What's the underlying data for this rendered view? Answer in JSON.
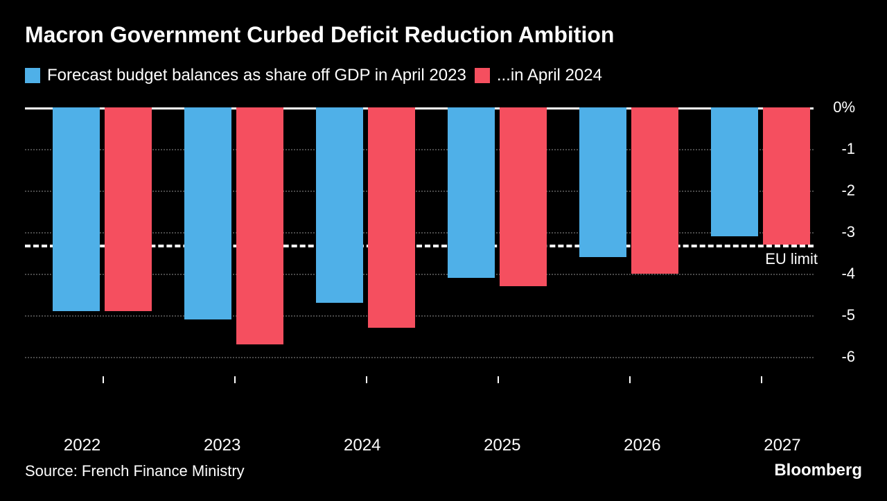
{
  "title": "Macron Government Curbed Deficit Reduction Ambition",
  "legend": {
    "series_a": {
      "label": "Forecast budget balances as share off GDP in April 2023",
      "color": "#4fb0e8"
    },
    "series_b": {
      "label": "...in April 2024",
      "color": "#f54f5f"
    }
  },
  "chart": {
    "type": "bar",
    "background_color": "#000000",
    "grid_color": "#4a4a4a",
    "axis_color": "#ffffff",
    "text_color": "#ffffff",
    "y": {
      "min": -6.5,
      "max": 0,
      "ticks": [
        0,
        -1,
        -2,
        -3,
        -4,
        -5,
        -6
      ],
      "labels": [
        "0%",
        "-1",
        "-2",
        "-3",
        "-4",
        "-5",
        "-6"
      ]
    },
    "categories": [
      "2022",
      "2023",
      "2024",
      "2025",
      "2026",
      "2027"
    ],
    "series_a_values": [
      -4.9,
      -5.1,
      -4.7,
      -4.1,
      -3.6,
      -3.1
    ],
    "series_b_values": [
      -4.9,
      -5.7,
      -5.3,
      -4.3,
      -4.0,
      -3.3
    ],
    "bar_colors": {
      "a": "#4fb0e8",
      "b": "#f54f5f"
    },
    "reference_line": {
      "value": -3.3,
      "label": "EU limit",
      "color": "#ffffff",
      "style": "dashed"
    },
    "group_width_pct": 13.5,
    "bar_width_pct": 6.0,
    "bar_gap_pct": 0.6,
    "group_positions_pct": [
      3.5,
      20.2,
      36.9,
      53.6,
      70.3,
      87.0
    ],
    "title_fontsize": 32,
    "legend_fontsize": 24,
    "tick_fontsize": 22,
    "xlabel_fontsize": 24
  },
  "footer": {
    "source": "Source: French Finance Ministry",
    "brand": "Bloomberg"
  }
}
